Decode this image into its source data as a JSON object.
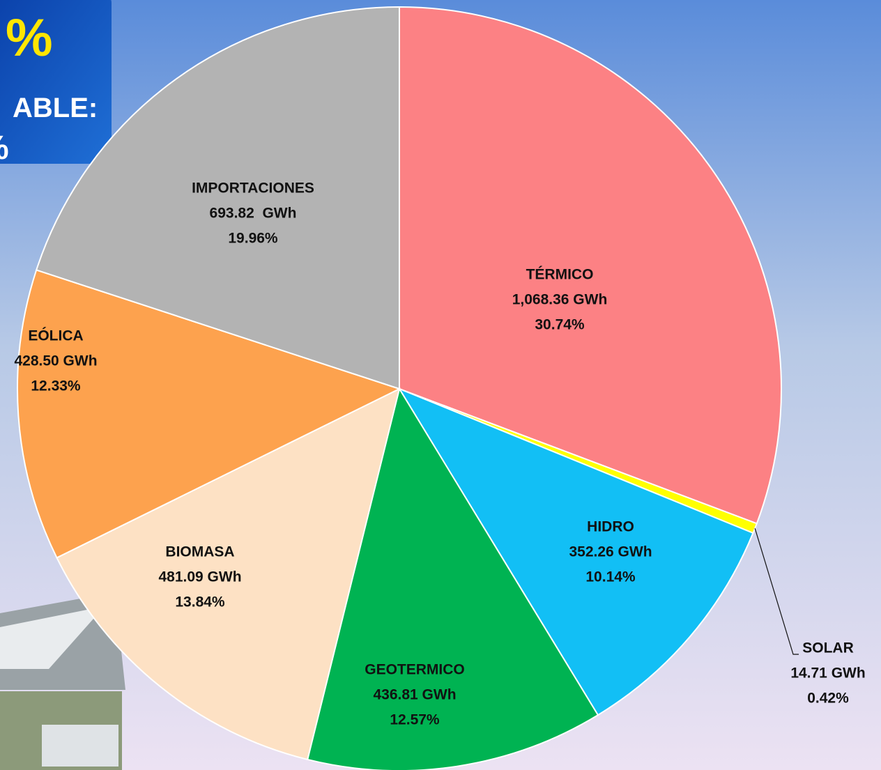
{
  "overlay": {
    "lines": [
      "%",
      "ABLE:",
      "%"
    ]
  },
  "chart_data": {
    "type": "pie",
    "categories": [
      "TÉRMICO",
      "SOLAR",
      "HIDRO",
      "GEOTERMICO",
      "BIOMASA",
      "EÓLICA",
      "IMPORTACIONES"
    ],
    "values": [
      1068.36,
      14.71,
      352.26,
      436.81,
      481.09,
      428.5,
      693.82
    ],
    "value_labels": [
      "1,068.36 GWh",
      "14.71 GWh",
      "352.26 GWh",
      "436.81 GWh",
      "481.09 GWh",
      "428.50 GWh",
      "693.82  GWh"
    ],
    "percent_labels": [
      "30.74%",
      "0.42%",
      "10.14%",
      "12.57%",
      "13.84%",
      "12.33%",
      "19.96%"
    ],
    "colors": [
      "#fc8184",
      "#ffff00",
      "#12bff5",
      "#00b352",
      "#fde1c4",
      "#fda24e",
      "#b3b3b3"
    ]
  }
}
